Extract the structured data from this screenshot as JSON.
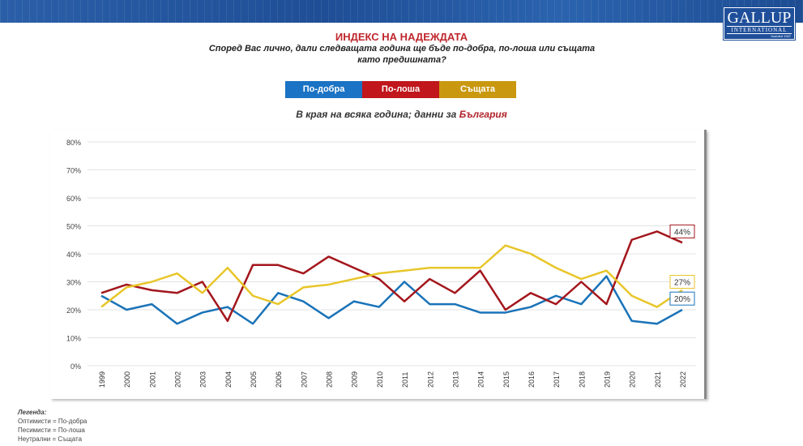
{
  "logo": {
    "name": "GALLUP",
    "sub": "INTERNATIONAL",
    "founded": "founded 1947"
  },
  "title": "ИНДЕКС НА НАДЕЖДАТА",
  "question": "Според Вас лично, дали следващата година ще бъде по-добра, по-лоша или същата като предишната?",
  "subtitle": {
    "text": "В края на всяка година; данни за ",
    "country": "България"
  },
  "notes": {
    "heading": "Легенда:",
    "lines": [
      "Оптимисти = По-добра",
      "Песимисти = По-лоша",
      "Неутрални = Същата"
    ]
  },
  "chart_data": {
    "type": "line",
    "x": [
      "1999",
      "2000",
      "2001",
      "2002",
      "2003",
      "2004",
      "2005",
      "2006",
      "2007",
      "2008",
      "2009",
      "2010",
      "2011",
      "2012",
      "2013",
      "2014",
      "2015",
      "2016",
      "2017",
      "2018",
      "2019",
      "2020",
      "2021",
      "2022"
    ],
    "ylim": [
      0,
      80
    ],
    "yticks": [
      "0%",
      "10%",
      "20%",
      "30%",
      "40%",
      "50%",
      "60%",
      "70%",
      "80%"
    ],
    "grid": true,
    "legend_position": "top",
    "series": [
      {
        "name": "По-добра",
        "color": "#1a73b8",
        "values": [
          25,
          20,
          22,
          15,
          19,
          21,
          15,
          26,
          23,
          17,
          23,
          21,
          30,
          22,
          22,
          19,
          19,
          21,
          25,
          22,
          32,
          16,
          15,
          20
        ],
        "end_label": "20%"
      },
      {
        "name": "По-лоша",
        "color": "#a3161c",
        "values": [
          26,
          29,
          27,
          26,
          30,
          16,
          36,
          36,
          33,
          39,
          35,
          31,
          23,
          31,
          26,
          34,
          20,
          26,
          22,
          30,
          22,
          45,
          48,
          44
        ],
        "end_label": "44%"
      },
      {
        "name": "Същата",
        "color": "#e8c62a",
        "values": [
          21,
          28,
          30,
          33,
          26,
          35,
          25,
          22,
          28,
          29,
          31,
          33,
          34,
          35,
          35,
          35,
          43,
          40,
          35,
          31,
          34,
          25,
          21,
          27
        ],
        "end_label": "27%"
      }
    ]
  },
  "legend_colors": [
    "#1a73c4",
    "#c0161c",
    "#c9980f"
  ]
}
